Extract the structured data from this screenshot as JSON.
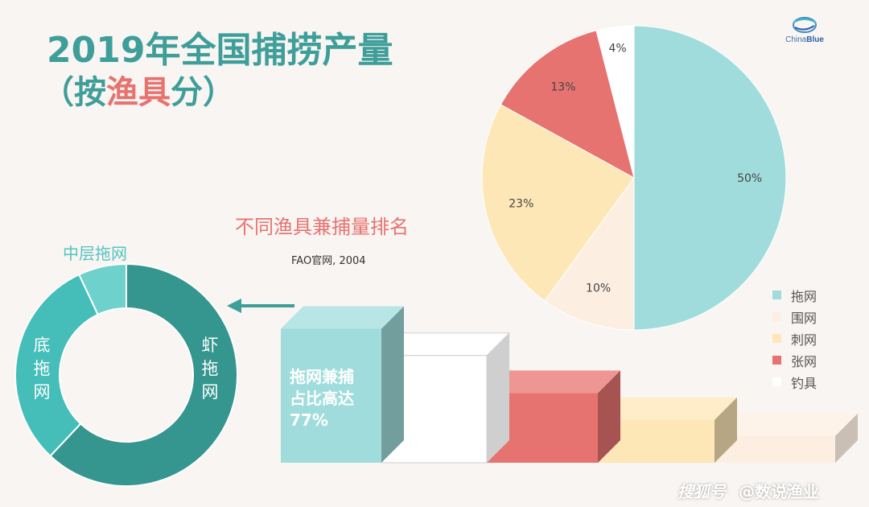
{
  "header": {
    "title_line1": "2019年全国捕捞产量",
    "title_line2_pre": "（按",
    "title_line2_highlight": "渔具",
    "title_line2_post": "分）"
  },
  "logo": {
    "text_a": "China",
    "text_b": "Blue"
  },
  "subtitle": "不同渔具兼捕量排名",
  "source": "FAO官网, 2004",
  "callout": [
    "拖网兼捕",
    "占比高达",
    "77%"
  ],
  "watermark": {
    "platform": "搜狐号",
    "account": "@数说渔业"
  },
  "colors": {
    "teal_light": "#a0dcdc",
    "cream": "#fcefe2",
    "yellow": "#fde7b6",
    "red": "#e77370",
    "white": "#ffffff",
    "donut_dark": "#35958f",
    "donut_mid": "#45bdb9",
    "donut_light": "#6fd1cc",
    "title": "#3e9e9a"
  },
  "chart_data": [
    {
      "type": "pie",
      "categories": [
        "拖网",
        "围网",
        "刺网",
        "张网",
        "钓具"
      ],
      "values": [
        50,
        10,
        23,
        13,
        4
      ],
      "labels": [
        "50%",
        "10%",
        "23%",
        "13%",
        "4%"
      ],
      "colors": [
        "#a0dcdc",
        "#fcefe2",
        "#fde7b6",
        "#e77370",
        "#ffffff"
      ],
      "legend_position": "bottom-right"
    },
    {
      "type": "pie",
      "donut": true,
      "categories": [
        "虾拖网",
        "底拖网",
        "中层拖网"
      ],
      "values": [
        62,
        31,
        7
      ],
      "colors": [
        "#35958f",
        "#45bdb9",
        "#6fd1cc"
      ]
    },
    {
      "type": "bar",
      "categories": [
        "拖网",
        "钓具",
        "张网",
        "刺网",
        "围网"
      ],
      "values": [
        5,
        4,
        2.6,
        1.6,
        1.0
      ],
      "colors": [
        "#a0dcdc",
        "#ffffff",
        "#e77370",
        "#fde7b6",
        "#fcefe2"
      ]
    }
  ]
}
